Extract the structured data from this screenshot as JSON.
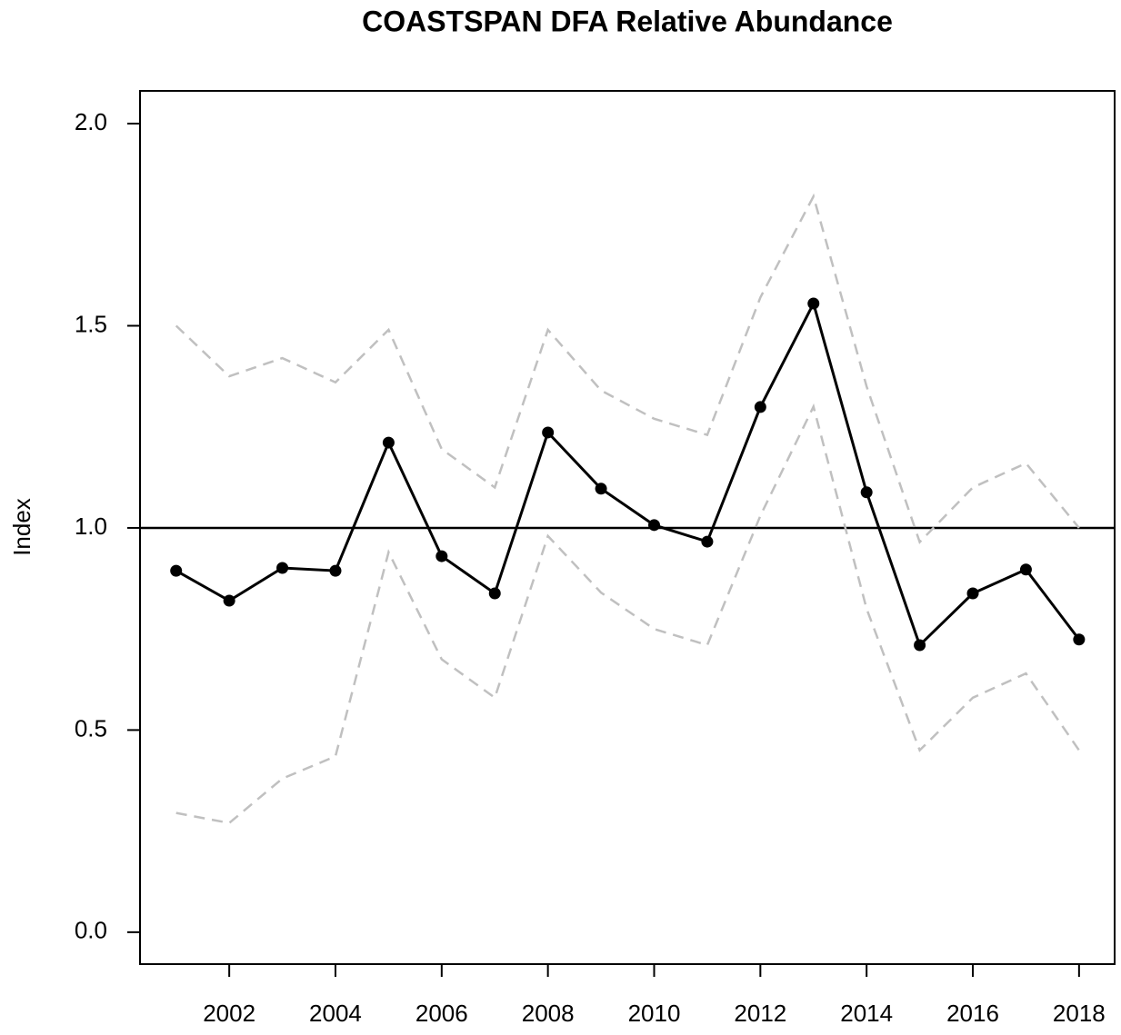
{
  "chart_data": {
    "type": "line",
    "title": "COASTSPAN DFA Relative Abundance",
    "y_label": "Index",
    "x": [
      2001,
      2002,
      2003,
      2004,
      2005,
      2006,
      2007,
      2008,
      2009,
      2010,
      2011,
      2012,
      2013,
      2014,
      2015,
      2016,
      2017,
      2018
    ],
    "series": [
      {
        "color": "#000000",
        "dashed": false,
        "markers": true,
        "values": [
          0.894,
          0.82,
          0.901,
          0.894,
          1.211,
          0.93,
          0.838,
          1.236,
          1.097,
          1.007,
          0.966,
          1.299,
          1.555,
          1.088,
          0.71,
          0.838,
          0.897,
          0.724
        ]
      },
      {
        "color": "#c0c0c0",
        "dashed": true,
        "markers": false,
        "values": [
          1.5,
          1.375,
          1.42,
          1.36,
          1.49,
          1.195,
          1.1,
          1.49,
          1.34,
          1.27,
          1.23,
          1.57,
          1.82,
          1.35,
          0.965,
          1.1,
          1.16,
          1.0
        ]
      },
      {
        "color": "#c0c0c0",
        "dashed": true,
        "markers": false,
        "values": [
          0.295,
          0.27,
          0.38,
          0.435,
          0.94,
          0.675,
          0.58,
          0.98,
          0.84,
          0.75,
          0.71,
          1.03,
          1.3,
          0.8,
          0.45,
          0.58,
          0.64,
          0.45
        ]
      }
    ],
    "hline": 1,
    "xlim": [
      2000.32,
      2018.67
    ],
    "xticks": [
      2002,
      2004,
      2006,
      2008,
      2010,
      2012,
      2014,
      2016,
      2018
    ],
    "ylim": [
      -0.079,
      2.081
    ],
    "yticks": [
      {
        "value": 0,
        "label": "0.0"
      },
      0.5,
      {
        "value": 1,
        "label": "1.0"
      },
      1.5,
      {
        "value": 2,
        "label": "2.0"
      }
    ]
  }
}
